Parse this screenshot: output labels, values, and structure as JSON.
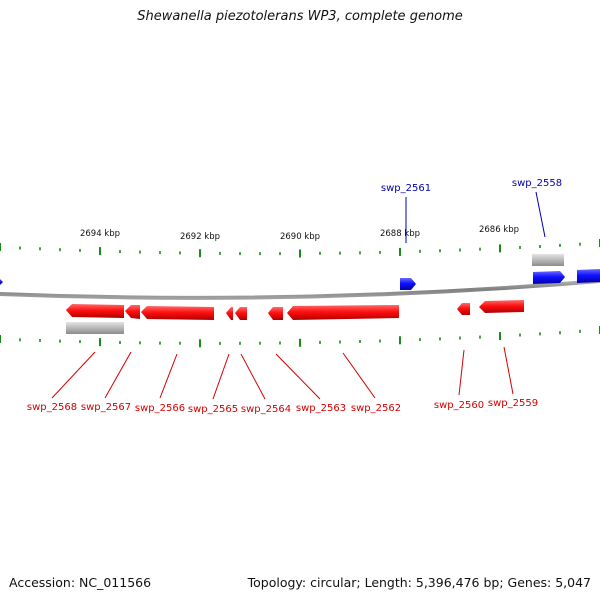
{
  "title": "Shewanella piezotolerans WP3, complete genome",
  "footer": {
    "accession": "Accession: NC_011566",
    "summary": "Topology: circular; Length: 5,396,476 bp; Genes: 5,047"
  },
  "colors": {
    "forward_gene": "#1010ff",
    "reverse_gene": "#ff1a1a",
    "other_feature": "#b8b8b8",
    "backbone": "#888888",
    "tick": "#1a8a1a",
    "reverse_label": "#d40000",
    "forward_label": "#0000b0"
  },
  "scale_labels": [
    "2694 kbp",
    "2692 kbp",
    "2690 kbp",
    "2688 kbp",
    "2686 kbp"
  ],
  "genes": [
    {
      "name": "swp_2568",
      "strand": "-"
    },
    {
      "name": "swp_2567",
      "strand": "-"
    },
    {
      "name": "swp_2566",
      "strand": "-"
    },
    {
      "name": "swp_2565",
      "strand": "-"
    },
    {
      "name": "swp_2564",
      "strand": "-"
    },
    {
      "name": "swp_2563",
      "strand": "-"
    },
    {
      "name": "swp_2562",
      "strand": "-"
    },
    {
      "name": "swp_2561",
      "strand": "+"
    },
    {
      "name": "swp_2560",
      "strand": "-"
    },
    {
      "name": "swp_2559",
      "strand": "-"
    },
    {
      "name": "swp_2558",
      "strand": "+"
    }
  ]
}
